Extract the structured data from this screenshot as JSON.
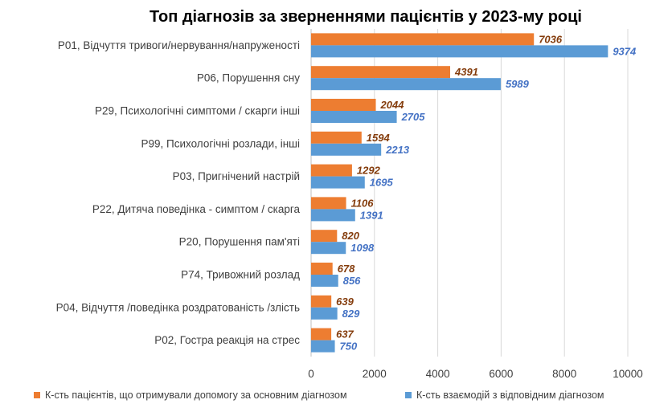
{
  "chart_data": {
    "type": "bar",
    "orientation": "horizontal",
    "title": "Топ діагнозів за зверненнями пацієнтів у 2023-му році",
    "categories": [
      "P01, Відчуття тривоги/нервування/напруженості",
      "P06, Порушення сну",
      "P29, Психологічні симптоми / скарги інші",
      "P99, Психологічні розлади, інші",
      "P03, Пригнічений настрій",
      "P22, Дитяча поведінка - симптом / скарга",
      "P20, Порушення пам'яті",
      "P74, Тривожний розлад",
      "P04, Відчуття /поведінка роздратованість /злість",
      "P02, Гостра реакція на стрес"
    ],
    "series": [
      {
        "name": "К-сть пацієнтів, що отримували допомогу за основним діагнозом",
        "color": "#ED7D31",
        "label_color": "#843C0C",
        "values": [
          7036,
          4391,
          2044,
          1594,
          1292,
          1106,
          820,
          678,
          639,
          637
        ]
      },
      {
        "name": "К-сть взаємодій з відповідним діагнозом",
        "color": "#5B9BD5",
        "label_color": "#4472C4",
        "values": [
          9374,
          5989,
          2705,
          2213,
          1695,
          1391,
          1098,
          856,
          829,
          750
        ]
      }
    ],
    "xlim": [
      0,
      10000
    ],
    "xticks": [
      "0",
      "2000",
      "4000",
      "6000",
      "8000",
      "10000"
    ],
    "grid": true,
    "legend": "bottom"
  }
}
